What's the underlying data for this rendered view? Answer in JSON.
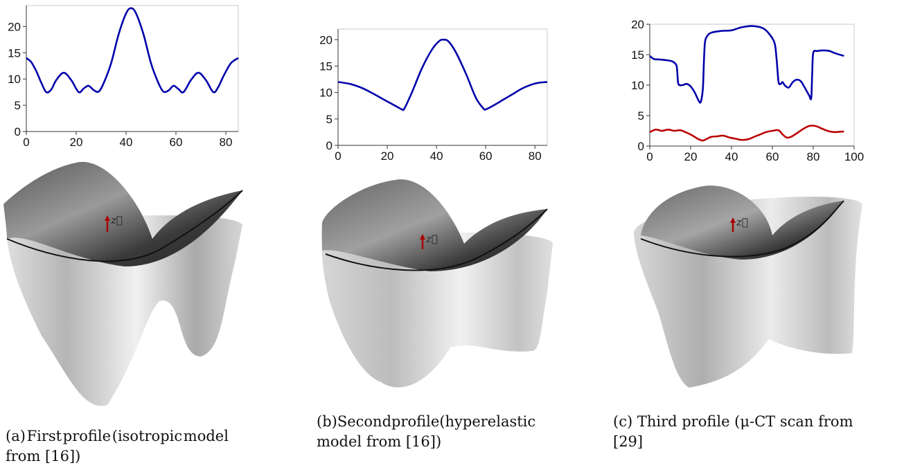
{
  "chart_data": [
    {
      "type": "line",
      "xlim": [
        0,
        85
      ],
      "ylim": [
        0,
        24
      ],
      "x_ticks": [
        0,
        20,
        40,
        60,
        80
      ],
      "y_ticks": [
        0,
        5,
        10,
        15,
        20
      ],
      "grid": false,
      "series": [
        {
          "color": "#0000aa",
          "x": [
            0,
            2,
            4,
            6,
            8,
            10,
            12,
            15,
            18,
            21,
            23,
            25,
            27,
            29,
            31,
            34,
            37,
            40,
            42,
            44,
            47,
            50,
            53,
            55,
            57,
            59,
            61,
            63,
            66,
            69,
            72,
            75,
            77,
            79,
            82,
            85
          ],
          "y": [
            14,
            13.2,
            11.5,
            9.3,
            7.5,
            8.0,
            9.8,
            11.2,
            9.8,
            7.5,
            8.2,
            8.7,
            7.9,
            7.6,
            9.2,
            13.0,
            18.5,
            22.5,
            23.5,
            22.5,
            18.5,
            13.0,
            9.2,
            7.6,
            7.8,
            8.7,
            8.1,
            7.5,
            9.8,
            11.2,
            9.8,
            7.5,
            8.5,
            10.5,
            13.0,
            14
          ]
        }
      ]
    },
    {
      "type": "line",
      "xlim": [
        0,
        85
      ],
      "ylim": [
        0,
        22
      ],
      "x_ticks": [
        0,
        20,
        40,
        60,
        80
      ],
      "y_ticks": [
        0,
        5,
        10,
        15,
        20
      ],
      "grid": false,
      "series": [
        {
          "color": "#0000aa",
          "x": [
            0,
            5,
            10,
            15,
            20,
            24,
            26,
            27,
            30,
            34,
            38,
            41,
            43,
            45,
            48,
            52,
            56,
            59,
            60,
            63,
            67,
            71,
            75,
            80,
            85
          ],
          "y": [
            12,
            11.6,
            10.8,
            9.6,
            8.3,
            7.3,
            6.8,
            7.0,
            10.0,
            14.5,
            18.0,
            19.7,
            20.0,
            19.6,
            17.5,
            13.5,
            9.0,
            7.0,
            6.8,
            7.5,
            8.6,
            9.7,
            10.8,
            11.7,
            12
          ]
        }
      ]
    },
    {
      "type": "line",
      "xlim": [
        0,
        100
      ],
      "ylim": [
        0,
        20
      ],
      "x_ticks": [
        0,
        20,
        40,
        60,
        80,
        100
      ],
      "y_ticks": [
        0,
        5,
        10,
        15,
        20
      ],
      "grid": false,
      "series": [
        {
          "color": "#0000aa",
          "x": [
            0,
            2,
            5,
            8,
            11,
            13,
            13.5,
            14,
            16,
            18,
            20,
            22,
            24,
            25,
            26,
            26.5,
            27,
            28,
            30,
            35,
            40,
            45,
            50,
            55,
            58,
            61,
            62,
            63,
            64,
            65,
            66,
            68,
            70,
            72,
            74,
            76,
            78,
            79,
            79.5,
            80,
            82,
            85,
            88,
            91,
            95
          ],
          "y": [
            14.8,
            14.3,
            14.2,
            14.1,
            13.9,
            13.3,
            12.0,
            10.2,
            10.0,
            10.2,
            9.8,
            8.8,
            7.4,
            7.3,
            9.5,
            14.0,
            17.0,
            18.0,
            18.6,
            18.9,
            19.0,
            19.5,
            19.7,
            19.4,
            18.6,
            17.0,
            14.5,
            10.6,
            10.2,
            10.5,
            10.0,
            9.6,
            10.5,
            10.9,
            10.6,
            9.5,
            8.3,
            7.9,
            12.0,
            15.3,
            15.6,
            15.7,
            15.6,
            15.2,
            14.8
          ]
        },
        {
          "color": "#bb0000",
          "x": [
            0,
            3,
            6,
            9,
            12,
            15,
            18,
            20,
            22,
            24,
            26,
            28,
            30,
            33,
            36,
            39,
            42,
            45,
            48,
            51,
            54,
            57,
            60,
            63,
            65,
            67,
            69,
            72,
            75,
            78,
            81,
            84,
            87,
            90,
            95
          ],
          "y": [
            2.3,
            2.7,
            2.5,
            2.7,
            2.5,
            2.6,
            2.2,
            1.9,
            1.5,
            1.1,
            0.9,
            1.2,
            1.5,
            1.6,
            1.7,
            1.4,
            1.2,
            1.0,
            1.1,
            1.5,
            1.9,
            2.3,
            2.5,
            2.6,
            1.9,
            1.4,
            1.5,
            2.1,
            2.8,
            3.3,
            3.3,
            2.9,
            2.5,
            2.3,
            2.4
          ]
        }
      ]
    }
  ],
  "figure": {
    "axis_vector_label": "z⃗",
    "arrow_color": "#aa0000"
  },
  "captions": [
    {
      "line1_words": [
        "(a)",
        "First",
        "profile",
        "(isotropic",
        "model"
      ],
      "line2": "from [16])"
    },
    {
      "line1_words": [
        "(b)",
        "Second",
        "profile",
        "(hyperelastic"
      ],
      "line2": "model from [16])"
    },
    {
      "line1": "(c) Third profile (μ-CT scan from",
      "line2": "[29]"
    }
  ]
}
